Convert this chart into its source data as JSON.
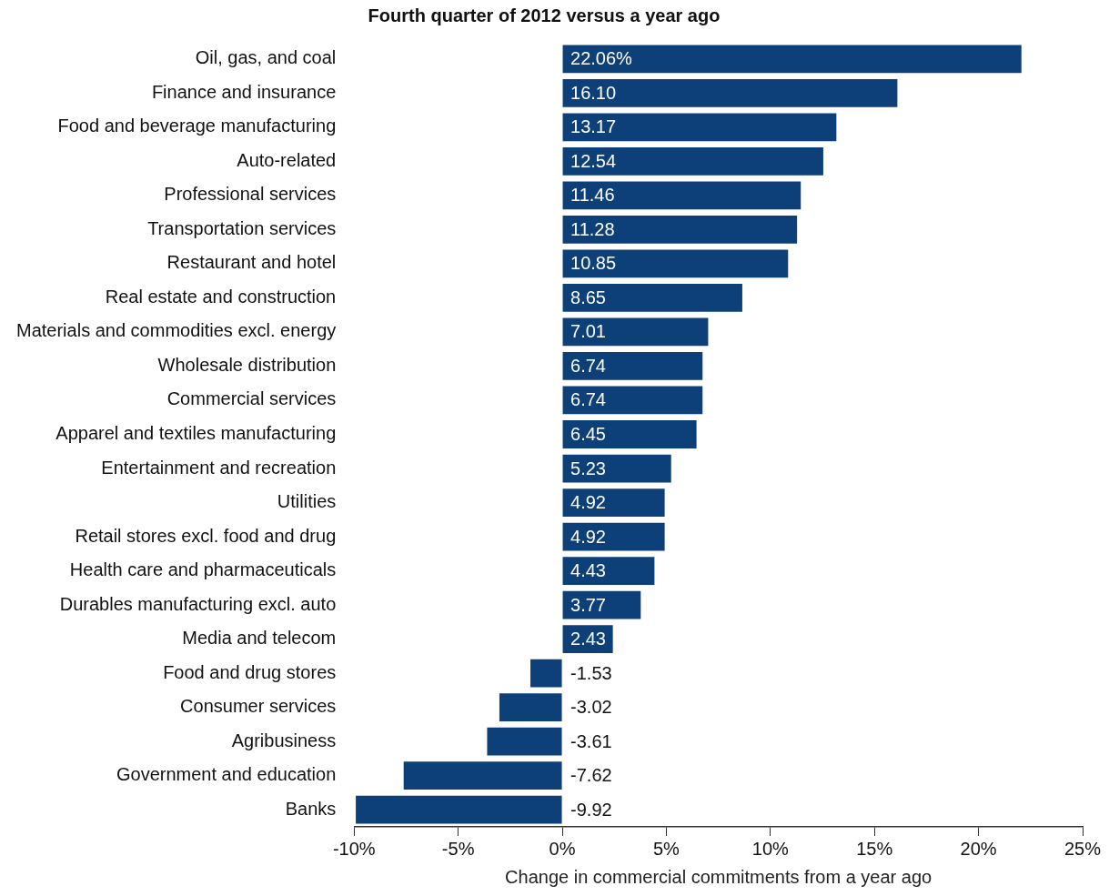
{
  "chart_data": {
    "type": "bar",
    "orientation": "horizontal",
    "title": "Fourth quarter of 2012 versus a year ago",
    "xlabel": "Change in commercial commitments from a year ago",
    "categories": [
      "Oil, gas, and coal",
      "Finance and insurance",
      "Food and beverage manufacturing",
      "Auto-related",
      "Professional services",
      "Transportation services",
      "Restaurant and hotel",
      "Real estate and construction",
      "Materials and commodities excl. energy",
      "Wholesale distribution",
      "Commercial services",
      "Apparel and textiles manufacturing",
      "Entertainment and recreation",
      "Utilities",
      "Retail stores excl. food and drug",
      "Health care and pharmaceuticals",
      "Durables manufacturing excl. auto",
      "Media and telecom",
      "Food and drug stores",
      "Consumer services",
      "Agribusiness",
      "Government and education",
      "Banks"
    ],
    "values": [
      22.06,
      16.1,
      13.17,
      12.54,
      11.46,
      11.28,
      10.85,
      8.65,
      7.01,
      6.74,
      6.74,
      6.45,
      5.23,
      4.92,
      4.92,
      4.43,
      3.77,
      2.43,
      -1.53,
      -3.02,
      -3.61,
      -7.62,
      -9.92
    ],
    "value_labels": [
      "22.06%",
      "16.10",
      "13.17",
      "12.54",
      "11.46",
      "11.28",
      "10.85",
      "8.65",
      "7.01",
      "6.74",
      "6.74",
      "6.45",
      "5.23",
      "4.92",
      "4.92",
      "4.43",
      "3.77",
      "2.43",
      "-1.53",
      "-3.02",
      "-3.61",
      "-7.62",
      "-9.92"
    ],
    "color": "#0d3f78",
    "xlim": [
      -10,
      25
    ],
    "xticks": [
      {
        "value": -10,
        "label": "-10%"
      },
      {
        "value": -5,
        "label": "-5%"
      },
      {
        "value": 0,
        "label": "0%"
      },
      {
        "value": 5,
        "label": "5%"
      },
      {
        "value": 10,
        "label": "10%"
      },
      {
        "value": 15,
        "label": "15%"
      },
      {
        "value": 20,
        "label": "20%"
      },
      {
        "value": 25,
        "label": "25%"
      }
    ],
    "grid": false,
    "legend": false
  }
}
